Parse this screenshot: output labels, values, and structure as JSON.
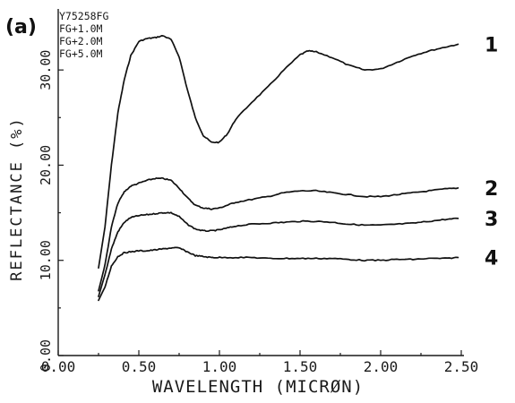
{
  "panel_label": "(a)",
  "chart_data": {
    "type": "line",
    "title": "",
    "xlabel": "WAVELENGTH (MICRØN)",
    "ylabel": "REFLECTANCE (%)",
    "xlim": [
      0.0,
      2.5
    ],
    "ylim": [
      0.0,
      35.0
    ],
    "xticks": [
      "0.00",
      "0.50",
      "1.00",
      "1.50",
      "2.00",
      "2.50"
    ],
    "yticks": [
      "0.00",
      "10.00",
      "20.00",
      "30.00"
    ],
    "grid": false,
    "legend": {
      "placement": "top-left",
      "entries": [
        "Y75258FG",
        "FG+1.0M",
        "FG+2.0M",
        "FG+5.0M"
      ]
    },
    "series": [
      {
        "name": "Y75258FG",
        "curve_label": "1",
        "x": [
          0.25,
          0.29,
          0.33,
          0.37,
          0.41,
          0.45,
          0.5,
          0.55,
          0.6,
          0.65,
          0.7,
          0.75,
          0.8,
          0.85,
          0.9,
          0.95,
          1.0,
          1.05,
          1.1,
          1.2,
          1.3,
          1.4,
          1.5,
          1.55,
          1.6,
          1.7,
          1.8,
          1.9,
          2.0,
          2.1,
          2.2,
          2.3,
          2.4,
          2.48
        ],
        "y": [
          9.2,
          13.5,
          20.0,
          25.5,
          29.0,
          31.5,
          33.0,
          33.3,
          33.4,
          33.6,
          33.2,
          31.4,
          28.0,
          25.0,
          23.1,
          22.4,
          22.4,
          23.3,
          24.8,
          26.6,
          28.2,
          30.0,
          31.6,
          32.0,
          31.9,
          31.3,
          30.5,
          30.0,
          30.1,
          30.8,
          31.5,
          32.0,
          32.4,
          32.7
        ]
      },
      {
        "name": "FG+1.0M",
        "curve_label": "2",
        "x": [
          0.25,
          0.29,
          0.33,
          0.37,
          0.41,
          0.45,
          0.5,
          0.55,
          0.6,
          0.65,
          0.7,
          0.75,
          0.8,
          0.85,
          0.9,
          0.95,
          1.0,
          1.05,
          1.1,
          1.2,
          1.3,
          1.4,
          1.5,
          1.6,
          1.7,
          1.8,
          1.9,
          2.0,
          2.1,
          2.2,
          2.3,
          2.4,
          2.48
        ],
        "y": [
          6.8,
          9.5,
          13.5,
          16.0,
          17.2,
          17.8,
          18.1,
          18.4,
          18.6,
          18.6,
          18.4,
          17.6,
          16.6,
          15.8,
          15.5,
          15.4,
          15.5,
          15.8,
          16.1,
          16.4,
          16.7,
          17.1,
          17.3,
          17.3,
          17.1,
          16.9,
          16.7,
          16.7,
          16.9,
          17.1,
          17.3,
          17.5,
          17.6
        ]
      },
      {
        "name": "FG+2.0M",
        "curve_label": "3",
        "x": [
          0.25,
          0.29,
          0.33,
          0.37,
          0.41,
          0.45,
          0.5,
          0.55,
          0.6,
          0.65,
          0.7,
          0.75,
          0.8,
          0.85,
          0.9,
          0.95,
          1.0,
          1.05,
          1.1,
          1.2,
          1.3,
          1.4,
          1.5,
          1.6,
          1.7,
          1.8,
          1.9,
          2.0,
          2.1,
          2.2,
          2.3,
          2.4,
          2.48
        ],
        "y": [
          6.2,
          8.5,
          11.2,
          13.0,
          14.0,
          14.5,
          14.7,
          14.8,
          14.9,
          15.0,
          15.0,
          14.6,
          13.8,
          13.3,
          13.1,
          13.1,
          13.2,
          13.4,
          13.6,
          13.8,
          13.9,
          14.0,
          14.1,
          14.1,
          14.0,
          13.8,
          13.7,
          13.7,
          13.8,
          13.9,
          14.1,
          14.3,
          14.4
        ]
      },
      {
        "name": "FG+5.0M",
        "curve_label": "4",
        "x": [
          0.25,
          0.29,
          0.33,
          0.37,
          0.41,
          0.45,
          0.5,
          0.55,
          0.6,
          0.65,
          0.7,
          0.75,
          0.8,
          0.85,
          0.9,
          0.95,
          1.0,
          1.1,
          1.2,
          1.3,
          1.4,
          1.5,
          1.6,
          1.7,
          1.8,
          1.9,
          2.0,
          2.1,
          2.2,
          2.3,
          2.4,
          2.48
        ],
        "y": [
          5.8,
          7.2,
          9.4,
          10.4,
          10.8,
          10.9,
          11.0,
          11.0,
          11.1,
          11.2,
          11.3,
          11.3,
          10.9,
          10.5,
          10.4,
          10.3,
          10.3,
          10.3,
          10.3,
          10.2,
          10.2,
          10.2,
          10.2,
          10.2,
          10.1,
          10.0,
          10.0,
          10.1,
          10.1,
          10.2,
          10.2,
          10.3
        ]
      }
    ]
  }
}
